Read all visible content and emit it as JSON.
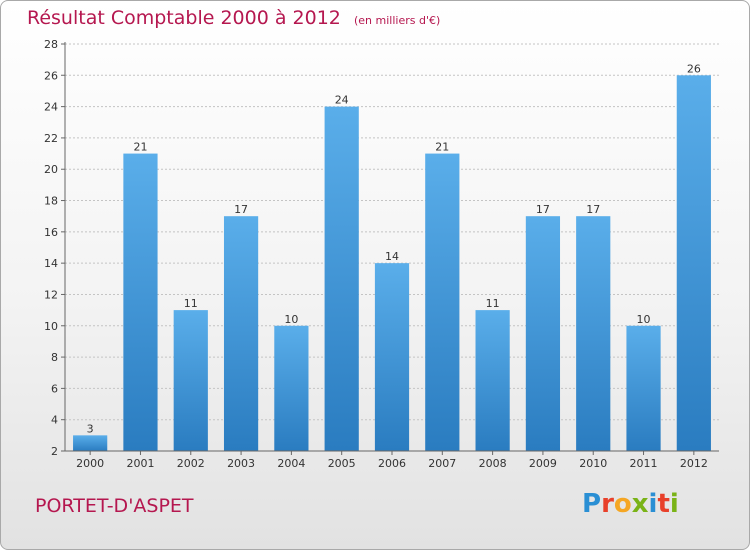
{
  "title": "Résultat Comptable 2000 à 2012",
  "subtitle": "(en milliers d'€)",
  "location": "PORTET-D'ASPET",
  "logo": {
    "letters": [
      "P",
      "r",
      "o",
      "x",
      "i",
      "t",
      "i"
    ],
    "colors": [
      "#2a8fd4",
      "#e8402a",
      "#f5a623",
      "#7ab317",
      "#2a8fd4",
      "#e8402a",
      "#7ab317"
    ]
  },
  "chart_data": {
    "type": "bar",
    "categories": [
      "2000",
      "2001",
      "2002",
      "2003",
      "2004",
      "2005",
      "2006",
      "2007",
      "2008",
      "2009",
      "2010",
      "2011",
      "2012"
    ],
    "values": [
      3,
      21,
      11,
      17,
      10,
      24,
      14,
      21,
      11,
      17,
      17,
      10,
      26
    ],
    "ylim": [
      2,
      28
    ],
    "yticks": [
      2,
      4,
      6,
      8,
      10,
      12,
      14,
      16,
      18,
      20,
      22,
      24,
      26,
      28
    ],
    "grid": true,
    "bar_color": "#3f97dc"
  }
}
